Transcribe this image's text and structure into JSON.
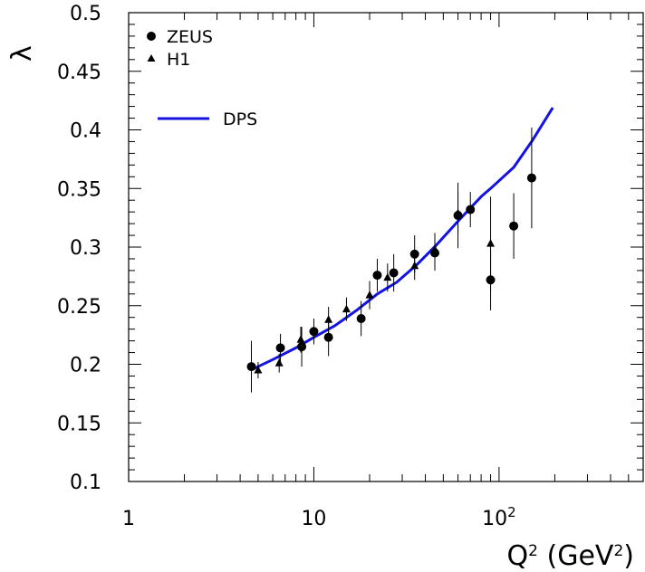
{
  "chart_data": {
    "type": "scatter",
    "title": "",
    "xlabel": "Q² (GeV²)",
    "xlabel_parts": {
      "base": "Q",
      "sup": "2",
      "unit_open": " (GeV",
      "unit_sup": "2",
      "unit_close": ")"
    },
    "ylabel": "λ",
    "x_scale": "log",
    "xlim": [
      1,
      600
    ],
    "ylim": [
      0.1,
      0.5
    ],
    "x_tick_labels": [
      {
        "value": 1,
        "label": "1"
      },
      {
        "value": 10,
        "label": "10"
      },
      {
        "value": 100,
        "label": "10",
        "sup": "2"
      }
    ],
    "y_tick_labels": [
      "0.1",
      "0.15",
      "0.2",
      "0.25",
      "0.3",
      "0.35",
      "0.4",
      "0.45",
      "0.5"
    ],
    "y_ticks": [
      0.1,
      0.15,
      0.2,
      0.25,
      0.3,
      0.35,
      0.4,
      0.45,
      0.5
    ],
    "grid": false,
    "legend_position": "top-left",
    "series": [
      {
        "name": "ZEUS",
        "marker": "circle",
        "points": [
          {
            "x": 4.6,
            "y": 0.198,
            "err": 0.022
          },
          {
            "x": 6.6,
            "y": 0.214,
            "err": 0.012
          },
          {
            "x": 8.6,
            "y": 0.215,
            "err": 0.017
          },
          {
            "x": 10.0,
            "y": 0.228,
            "err": 0.011
          },
          {
            "x": 12.0,
            "y": 0.223,
            "err": 0.016
          },
          {
            "x": 18.0,
            "y": 0.239,
            "err": 0.015
          },
          {
            "x": 22.0,
            "y": 0.276,
            "err": 0.014
          },
          {
            "x": 27.0,
            "y": 0.278,
            "err": 0.016
          },
          {
            "x": 35.0,
            "y": 0.294,
            "err": 0.016
          },
          {
            "x": 45.0,
            "y": 0.295,
            "err": 0.015
          },
          {
            "x": 60.0,
            "y": 0.327,
            "err": 0.028
          },
          {
            "x": 70.0,
            "y": 0.332,
            "err": 0.015
          },
          {
            "x": 90.0,
            "y": 0.272,
            "err": 0.026
          },
          {
            "x": 120.0,
            "y": 0.318,
            "err": 0.028
          },
          {
            "x": 150.0,
            "y": 0.359,
            "err": 0.043
          }
        ]
      },
      {
        "name": "H1",
        "marker": "triangle",
        "points": [
          {
            "x": 5.0,
            "y": 0.195,
            "err": 0.007
          },
          {
            "x": 6.5,
            "y": 0.201,
            "err": 0.008
          },
          {
            "x": 8.5,
            "y": 0.221,
            "err": 0.011
          },
          {
            "x": 12.0,
            "y": 0.238,
            "err": 0.011
          },
          {
            "x": 15.0,
            "y": 0.247,
            "err": 0.01
          },
          {
            "x": 20.0,
            "y": 0.259,
            "err": 0.012
          },
          {
            "x": 25.0,
            "y": 0.274,
            "err": 0.012
          },
          {
            "x": 35.0,
            "y": 0.284,
            "err": 0.012
          },
          {
            "x": 45.0,
            "y": 0.298,
            "err": 0.014
          },
          {
            "x": 60.0,
            "y": 0.329,
            "err": 0.018
          },
          {
            "x": 90.0,
            "y": 0.303,
            "err": 0.04
          }
        ]
      },
      {
        "name": "DPS",
        "type": "line",
        "color": "#1414e0",
        "points": [
          {
            "x": 4.7,
            "y": 0.196
          },
          {
            "x": 6.0,
            "y": 0.204
          },
          {
            "x": 8.0,
            "y": 0.214
          },
          {
            "x": 10.0,
            "y": 0.223
          },
          {
            "x": 13.0,
            "y": 0.233
          },
          {
            "x": 17.0,
            "y": 0.246
          },
          {
            "x": 22.0,
            "y": 0.26
          },
          {
            "x": 28.0,
            "y": 0.27
          },
          {
            "x": 36.0,
            "y": 0.285
          },
          {
            "x": 46.0,
            "y": 0.302
          },
          {
            "x": 60.0,
            "y": 0.322
          },
          {
            "x": 80.0,
            "y": 0.343
          },
          {
            "x": 90.0,
            "y": 0.35
          },
          {
            "x": 120.0,
            "y": 0.368
          },
          {
            "x": 150.0,
            "y": 0.39
          },
          {
            "x": 195.0,
            "y": 0.419
          }
        ]
      }
    ]
  }
}
